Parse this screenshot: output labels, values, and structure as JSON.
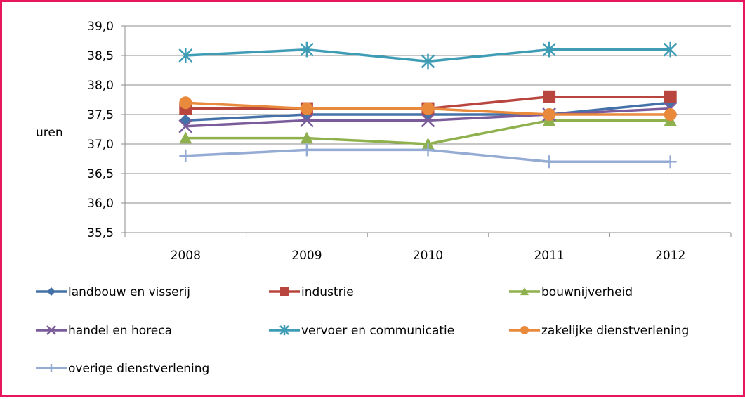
{
  "chart_data": {
    "type": "line",
    "title": "",
    "xlabel": "",
    "ylabel": "uren",
    "categories": [
      "2008",
      "2009",
      "2010",
      "2011",
      "2012"
    ],
    "ylim": [
      35.5,
      39.0
    ],
    "ytick_step": 0.5,
    "ytick_labels": [
      "35,5",
      "36,0",
      "36,5",
      "37,0",
      "37,5",
      "38,0",
      "38,5",
      "39,0"
    ],
    "grid": true,
    "legend_position": "bottom",
    "series": [
      {
        "name": "landbouw en visserij",
        "color": "#4472a8",
        "marker": "diamond",
        "values": [
          37.4,
          37.5,
          37.5,
          37.5,
          37.7
        ]
      },
      {
        "name": "industrie",
        "color": "#b8463f",
        "marker": "square",
        "values": [
          37.6,
          37.6,
          37.6,
          37.8,
          37.8
        ]
      },
      {
        "name": "bouwnijverheid",
        "color": "#8eb04d",
        "marker": "triangle",
        "values": [
          37.1,
          37.1,
          37.0,
          37.4,
          37.4
        ]
      },
      {
        "name": "handel en horeca",
        "color": "#7b5c9b",
        "marker": "x",
        "values": [
          37.3,
          37.4,
          37.4,
          37.5,
          37.6
        ]
      },
      {
        "name": "vervoer en communicatie",
        "color": "#3f9cb5",
        "marker": "star",
        "values": [
          38.5,
          38.6,
          38.4,
          38.6,
          38.6
        ]
      },
      {
        "name": "zakelijke dienstverlening",
        "color": "#e8893b",
        "marker": "circle",
        "values": [
          37.7,
          37.6,
          37.6,
          37.5,
          37.5
        ]
      },
      {
        "name": "overige dienstverlening",
        "color": "#94abd3",
        "marker": "plus",
        "values": [
          36.8,
          36.9,
          36.9,
          36.7,
          36.7
        ]
      }
    ]
  }
}
